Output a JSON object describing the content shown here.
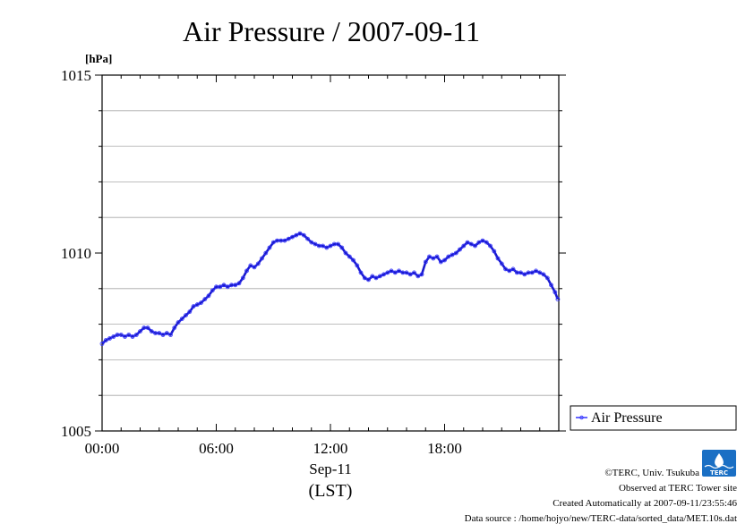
{
  "title": "Air Pressure / 2007-09-11",
  "chart_data": {
    "type": "line",
    "title": "Air Pressure / 2007-09-11",
    "ylabel": "[hPa]",
    "xlabel": "Sep-11",
    "xlabel2": "(LST)",
    "xlim": [
      0,
      24
    ],
    "ylim": [
      1005,
      1015
    ],
    "x_ticks": [
      {
        "x": 0,
        "label": "00:00"
      },
      {
        "x": 6,
        "label": "06:00"
      },
      {
        "x": 12,
        "label": "12:00"
      },
      {
        "x": 18,
        "label": "18:00"
      }
    ],
    "y_ticks": [
      1005,
      1010,
      1015
    ],
    "y_gridlines": [
      1006,
      1007,
      1008,
      1009,
      1011,
      1012,
      1013,
      1014
    ],
    "grid": true,
    "legend_position": "right",
    "series": [
      {
        "name": "Air Pressure",
        "color": "#3333ff",
        "points": [
          [
            0.0,
            1007.45
          ],
          [
            0.2,
            1007.55
          ],
          [
            0.4,
            1007.6
          ],
          [
            0.6,
            1007.65
          ],
          [
            0.8,
            1007.7
          ],
          [
            1.0,
            1007.7
          ],
          [
            1.2,
            1007.65
          ],
          [
            1.4,
            1007.7
          ],
          [
            1.6,
            1007.65
          ],
          [
            1.8,
            1007.7
          ],
          [
            2.0,
            1007.8
          ],
          [
            2.2,
            1007.9
          ],
          [
            2.4,
            1007.9
          ],
          [
            2.6,
            1007.8
          ],
          [
            2.8,
            1007.75
          ],
          [
            3.0,
            1007.75
          ],
          [
            3.2,
            1007.7
          ],
          [
            3.4,
            1007.75
          ],
          [
            3.6,
            1007.7
          ],
          [
            3.8,
            1007.9
          ],
          [
            4.0,
            1008.05
          ],
          [
            4.2,
            1008.15
          ],
          [
            4.4,
            1008.25
          ],
          [
            4.6,
            1008.35
          ],
          [
            4.8,
            1008.5
          ],
          [
            5.0,
            1008.55
          ],
          [
            5.2,
            1008.6
          ],
          [
            5.4,
            1008.7
          ],
          [
            5.6,
            1008.8
          ],
          [
            5.8,
            1008.95
          ],
          [
            6.0,
            1009.05
          ],
          [
            6.2,
            1009.05
          ],
          [
            6.4,
            1009.1
          ],
          [
            6.6,
            1009.05
          ],
          [
            6.8,
            1009.1
          ],
          [
            7.0,
            1009.1
          ],
          [
            7.2,
            1009.15
          ],
          [
            7.4,
            1009.3
          ],
          [
            7.6,
            1009.5
          ],
          [
            7.8,
            1009.65
          ],
          [
            8.0,
            1009.6
          ],
          [
            8.2,
            1009.7
          ],
          [
            8.4,
            1009.85
          ],
          [
            8.6,
            1010.0
          ],
          [
            8.8,
            1010.15
          ],
          [
            9.0,
            1010.3
          ],
          [
            9.2,
            1010.35
          ],
          [
            9.4,
            1010.35
          ],
          [
            9.6,
            1010.35
          ],
          [
            9.8,
            1010.4
          ],
          [
            10.0,
            1010.45
          ],
          [
            10.2,
            1010.5
          ],
          [
            10.4,
            1010.55
          ],
          [
            10.6,
            1010.5
          ],
          [
            10.8,
            1010.4
          ],
          [
            11.0,
            1010.3
          ],
          [
            11.2,
            1010.25
          ],
          [
            11.4,
            1010.2
          ],
          [
            11.6,
            1010.2
          ],
          [
            11.8,
            1010.15
          ],
          [
            12.0,
            1010.2
          ],
          [
            12.2,
            1010.25
          ],
          [
            12.4,
            1010.25
          ],
          [
            12.6,
            1010.15
          ],
          [
            12.8,
            1010.0
          ],
          [
            13.0,
            1009.9
          ],
          [
            13.2,
            1009.8
          ],
          [
            13.4,
            1009.65
          ],
          [
            13.6,
            1009.45
          ],
          [
            13.8,
            1009.3
          ],
          [
            14.0,
            1009.25
          ],
          [
            14.2,
            1009.35
          ],
          [
            14.4,
            1009.3
          ],
          [
            14.6,
            1009.35
          ],
          [
            14.8,
            1009.4
          ],
          [
            15.0,
            1009.45
          ],
          [
            15.2,
            1009.5
          ],
          [
            15.4,
            1009.45
          ],
          [
            15.6,
            1009.5
          ],
          [
            15.8,
            1009.45
          ],
          [
            16.0,
            1009.45
          ],
          [
            16.2,
            1009.4
          ],
          [
            16.4,
            1009.45
          ],
          [
            16.6,
            1009.35
          ],
          [
            16.8,
            1009.4
          ],
          [
            17.0,
            1009.75
          ],
          [
            17.2,
            1009.9
          ],
          [
            17.4,
            1009.85
          ],
          [
            17.6,
            1009.9
          ],
          [
            17.8,
            1009.75
          ],
          [
            18.0,
            1009.8
          ],
          [
            18.2,
            1009.9
          ],
          [
            18.4,
            1009.95
          ],
          [
            18.6,
            1010.0
          ],
          [
            18.8,
            1010.1
          ],
          [
            19.0,
            1010.2
          ],
          [
            19.2,
            1010.3
          ],
          [
            19.4,
            1010.25
          ],
          [
            19.6,
            1010.2
          ],
          [
            19.8,
            1010.3
          ],
          [
            20.0,
            1010.35
          ],
          [
            20.2,
            1010.3
          ],
          [
            20.4,
            1010.2
          ],
          [
            20.6,
            1010.05
          ],
          [
            20.8,
            1009.85
          ],
          [
            21.0,
            1009.7
          ],
          [
            21.2,
            1009.55
          ],
          [
            21.4,
            1009.5
          ],
          [
            21.6,
            1009.55
          ],
          [
            21.8,
            1009.45
          ],
          [
            22.0,
            1009.45
          ],
          [
            22.2,
            1009.4
          ],
          [
            22.4,
            1009.45
          ],
          [
            22.6,
            1009.45
          ],
          [
            22.8,
            1009.5
          ],
          [
            23.0,
            1009.45
          ],
          [
            23.2,
            1009.4
          ],
          [
            23.4,
            1009.3
          ],
          [
            23.6,
            1009.1
          ],
          [
            23.8,
            1008.9
          ],
          [
            23.95,
            1008.7
          ]
        ]
      }
    ]
  },
  "footer": {
    "copyright": "©TERC, Univ. Tsukuba",
    "observed": "Observed at TERC Tower site",
    "created": "Created Automatically at 2007-09-11/23:55:46",
    "source": "Data source : /home/hojyo/new/TERC-data/sorted_data/MET.10s.dat",
    "logo_text": "TERC",
    "logo_color": "#1a6fc4"
  }
}
